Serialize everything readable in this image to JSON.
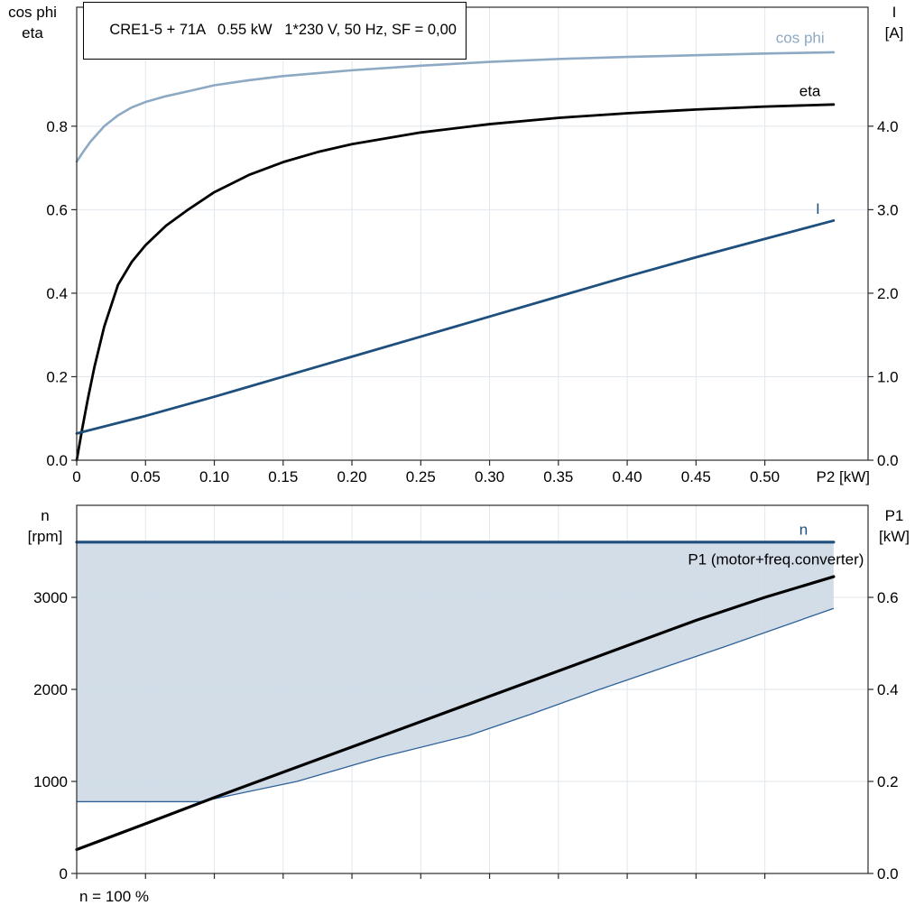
{
  "header": {
    "title": "CRE1-5 + 71A   0.55 kW   1*230 V, 50 Hz, SF = 0,00"
  },
  "labels": {
    "top_left_1": "cos phi",
    "top_left_2": "eta",
    "top_right_1": "I",
    "top_right_2": "[A]",
    "bottom_left_1": "n",
    "bottom_left_2": "[rpm]",
    "bottom_right_1": "P1",
    "bottom_right_2": "[kW]",
    "footnote": "n = 100 %"
  },
  "colors": {
    "dark_blue": "#1e4f7d",
    "light_blue": "#8da9c4",
    "black": "#000000",
    "area_fill": "#cdd9e6",
    "area_border": "#2d6197",
    "grid": "#e0e7ee",
    "axis": "#2b2b2b"
  },
  "chart_data": [
    {
      "type": "line",
      "title": "CRE1-5 + 71A   0.55 kW   1*230 V, 50 Hz, SF = 0,00",
      "xlabel": "P2 [kW]",
      "xlim": [
        0,
        0.575
      ],
      "x_ticks": [
        0,
        0.05,
        0.1,
        0.15,
        0.2,
        0.25,
        0.3,
        0.35,
        0.4,
        0.45,
        0.5
      ],
      "x_tick_labels": [
        "0",
        "0.05",
        "0.10",
        "0.15",
        "0.20",
        "0.25",
        "0.30",
        "0.35",
        "0.40",
        "0.45",
        "0.50"
      ],
      "left_axis": {
        "label": "cos phi / eta",
        "lim": [
          0,
          1.085
        ],
        "ticks": [
          0,
          0.2,
          0.4,
          0.6,
          0.8
        ],
        "tick_labels": [
          "0.0",
          "0.2",
          "0.4",
          "0.6",
          "0.8"
        ]
      },
      "right_axis": {
        "label": "I [A]",
        "lim": [
          0,
          5.425
        ],
        "ticks": [
          0,
          1,
          2,
          3,
          4
        ],
        "tick_labels": [
          "0.0",
          "1.0",
          "2.0",
          "3.0",
          "4.0"
        ]
      },
      "grid": true,
      "series": [
        {
          "name": "cos phi",
          "axis": "left",
          "color": "#8da9c4",
          "width": 2.6,
          "label_at": [
            0.508,
            1.0
          ],
          "x": [
            0,
            0.005,
            0.01,
            0.02,
            0.03,
            0.04,
            0.05,
            0.065,
            0.08,
            0.1,
            0.125,
            0.15,
            0.2,
            0.25,
            0.3,
            0.35,
            0.4,
            0.45,
            0.5,
            0.55
          ],
          "y": [
            0.715,
            0.74,
            0.763,
            0.8,
            0.826,
            0.845,
            0.858,
            0.872,
            0.883,
            0.898,
            0.91,
            0.92,
            0.934,
            0.945,
            0.954,
            0.961,
            0.966,
            0.97,
            0.974,
            0.977
          ]
        },
        {
          "name": "eta",
          "axis": "left",
          "color": "#000000",
          "width": 2.8,
          "label_at": [
            0.525,
            0.872
          ],
          "x": [
            0,
            0.004,
            0.008,
            0.013,
            0.02,
            0.03,
            0.04,
            0.05,
            0.065,
            0.08,
            0.1,
            0.125,
            0.15,
            0.175,
            0.2,
            0.25,
            0.3,
            0.35,
            0.4,
            0.45,
            0.5,
            0.55
          ],
          "y": [
            0,
            0.075,
            0.145,
            0.225,
            0.32,
            0.42,
            0.475,
            0.515,
            0.562,
            0.598,
            0.642,
            0.683,
            0.714,
            0.738,
            0.757,
            0.785,
            0.805,
            0.82,
            0.831,
            0.84,
            0.847,
            0.852
          ]
        },
        {
          "name": "I",
          "axis": "right",
          "color": "#1e4f7d",
          "width": 2.8,
          "label_at": [
            0.537,
            2.95
          ],
          "x": [
            0,
            0.05,
            0.1,
            0.15,
            0.2,
            0.25,
            0.3,
            0.35,
            0.4,
            0.45,
            0.5,
            0.55
          ],
          "y": [
            0.32,
            0.53,
            0.76,
            1.0,
            1.24,
            1.48,
            1.72,
            1.96,
            2.2,
            2.43,
            2.65,
            2.87
          ]
        }
      ]
    },
    {
      "type": "line",
      "title": "",
      "xlabel": "",
      "xlim": [
        0,
        0.575
      ],
      "x_ticks": [
        0,
        0.05,
        0.1,
        0.15,
        0.2,
        0.25,
        0.3,
        0.35,
        0.4,
        0.45,
        0.5
      ],
      "x_tick_labels": [],
      "left_axis": {
        "label": "n [rpm]",
        "lim": [
          0,
          4000
        ],
        "ticks": [
          0,
          1000,
          2000,
          3000
        ],
        "tick_labels": [
          "0",
          "1000",
          "2000",
          "3000"
        ]
      },
      "right_axis": {
        "label": "P1 [kW]",
        "lim": [
          0,
          0.8
        ],
        "ticks": [
          0,
          0.2,
          0.4,
          0.6
        ],
        "tick_labels": [
          "0.0",
          "0.2",
          "0.4",
          "0.6"
        ]
      },
      "grid": true,
      "area": {
        "color": "#cdd9e6",
        "opacity": 0.9,
        "border_color": "#2d6197",
        "upper": 3600,
        "boundary_x": [
          0,
          0.09,
          0.16,
          0.22,
          0.285,
          0.33,
          0.38,
          0.47,
          0.55
        ],
        "boundary_y": [
          780,
          780,
          1000,
          1260,
          1500,
          1730,
          2000,
          2460,
          2880
        ]
      },
      "series": [
        {
          "name": "n",
          "axis": "left",
          "color": "#1e4f7d",
          "width": 3.2,
          "label_at": [
            0.525,
            3680
          ],
          "x": [
            0,
            0.55
          ],
          "y": [
            3600,
            3600
          ]
        },
        {
          "name": "P1 (motor+freq.converter)",
          "axis": "right",
          "color": "#000000",
          "width": 3.2,
          "label_at": [
            0.572,
            0.672
          ],
          "label_anchor": "end",
          "x": [
            0,
            0.05,
            0.1,
            0.15,
            0.2,
            0.25,
            0.3,
            0.35,
            0.4,
            0.45,
            0.5,
            0.55
          ],
          "y": [
            0.052,
            0.108,
            0.165,
            0.22,
            0.275,
            0.33,
            0.385,
            0.44,
            0.495,
            0.55,
            0.6,
            0.645
          ]
        }
      ],
      "footnote": "n = 100 %"
    }
  ]
}
